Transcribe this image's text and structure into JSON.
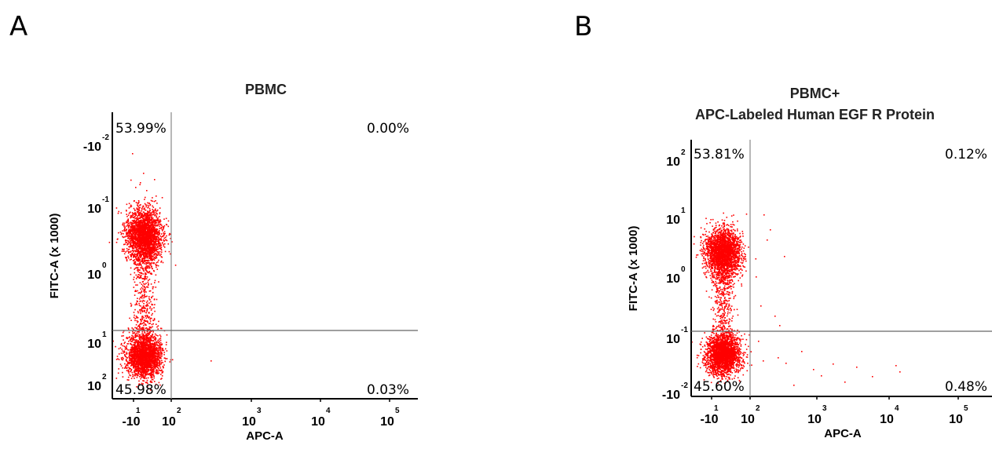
{
  "chart_data": [
    {
      "type": "scatter",
      "panel_label": "A",
      "title_lines": [
        "PBMC"
      ],
      "xlabel": "APC-A",
      "ylabel": "FITC-A (x 1000)",
      "x_ticks": [
        {
          "base": "-10",
          "exp": "1"
        },
        {
          "base": "10",
          "exp": "2"
        },
        {
          "base": "10",
          "exp": "3"
        },
        {
          "base": "10",
          "exp": "4"
        },
        {
          "base": "10",
          "exp": "5"
        }
      ],
      "y_ticks": [
        {
          "base": "-10",
          "exp": "-2"
        },
        {
          "base": "10",
          "exp": "-1"
        },
        {
          "base": "10",
          "exp": "0"
        },
        {
          "base": "10",
          "exp": "1"
        },
        {
          "base": "10",
          "exp": "2"
        }
      ],
      "quadrants": {
        "top_left": "53.99%",
        "top_right": "0.00%",
        "bottom_left": "45.98%",
        "bottom_right": "0.03%"
      },
      "point_color": "#ff0000",
      "grid": false
    },
    {
      "type": "scatter",
      "panel_label": "B",
      "title_lines": [
        "PBMC+",
        "APC-Labeled Human EGF R Protein"
      ],
      "xlabel": "APC-A",
      "ylabel": "FITC-A (x 1000)",
      "x_ticks": [
        {
          "base": "-10",
          "exp": "1"
        },
        {
          "base": "10",
          "exp": "2"
        },
        {
          "base": "10",
          "exp": "3"
        },
        {
          "base": "10",
          "exp": "4"
        },
        {
          "base": "10",
          "exp": "5"
        }
      ],
      "y_ticks": [
        {
          "base": "-10",
          "exp": "-2"
        },
        {
          "base": "10",
          "exp": "-1"
        },
        {
          "base": "10",
          "exp": "0"
        },
        {
          "base": "10",
          "exp": "1"
        },
        {
          "base": "10",
          "exp": "2"
        }
      ],
      "quadrants": {
        "top_left": "53.81%",
        "top_right": "0.12%",
        "bottom_left": "45.60%",
        "bottom_right": "0.48%"
      },
      "point_color": "#ff0000",
      "grid": false
    }
  ]
}
